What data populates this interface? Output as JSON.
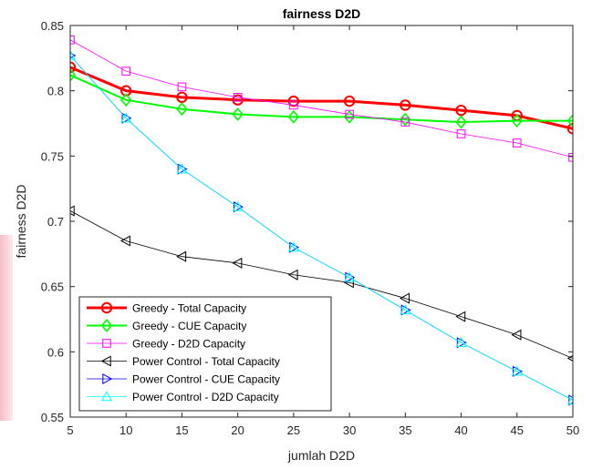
{
  "chart_data": {
    "type": "line",
    "title": "fairness D2D",
    "xlabel": "jumlah D2D",
    "ylabel": "fairness D2D",
    "x": [
      5,
      10,
      15,
      20,
      25,
      30,
      35,
      40,
      45,
      50
    ],
    "xlim": [
      5,
      50
    ],
    "ylim": [
      0.55,
      0.85
    ],
    "xticks": [
      "5",
      "10",
      "15",
      "20",
      "25",
      "30",
      "35",
      "40",
      "45",
      "50"
    ],
    "yticks": [
      "0.55",
      "0.6",
      "0.65",
      "0.7",
      "0.75",
      "0.8",
      "0.85"
    ],
    "grid": false,
    "legend_position": "bottom-left",
    "series": [
      {
        "name": "Greedy - Total Capacity",
        "color": "#ff0000",
        "marker": "circle",
        "line_width": 3,
        "values": [
          0.818,
          0.8,
          0.795,
          0.793,
          0.792,
          0.792,
          0.789,
          0.785,
          0.781,
          0.771
        ]
      },
      {
        "name": "Greedy - CUE Capacity",
        "color": "#00ff00",
        "marker": "diamond",
        "line_width": 2,
        "values": [
          0.812,
          0.793,
          0.786,
          0.782,
          0.78,
          0.78,
          0.778,
          0.776,
          0.777,
          0.777
        ]
      },
      {
        "name": "Greedy - D2D Capacity",
        "color": "#ff00ff",
        "marker": "square",
        "line_width": 0.8,
        "values": [
          0.839,
          0.815,
          0.803,
          0.795,
          0.789,
          0.782,
          0.776,
          0.767,
          0.76,
          0.749
        ]
      },
      {
        "name": "Power Control - Total Capacity",
        "color": "#000000",
        "marker": "triangle-left",
        "line_width": 0.8,
        "values": [
          0.708,
          0.685,
          0.673,
          0.668,
          0.659,
          0.653,
          0.641,
          0.627,
          0.613,
          0.595
        ]
      },
      {
        "name": "Power Control - CUE Capacity",
        "color": "#0000ff",
        "marker": "triangle-right",
        "line_width": 0.8,
        "values": [
          0.827,
          0.779,
          0.74,
          0.711,
          0.68,
          0.657,
          0.632,
          0.607,
          0.585,
          0.563
        ]
      },
      {
        "name": "Power Control - D2D Capacity",
        "color": "#00ffff",
        "marker": "triangle-up",
        "line_width": 0.8,
        "values": [
          0.827,
          0.779,
          0.74,
          0.711,
          0.68,
          0.657,
          0.632,
          0.607,
          0.585,
          0.563
        ]
      }
    ]
  }
}
